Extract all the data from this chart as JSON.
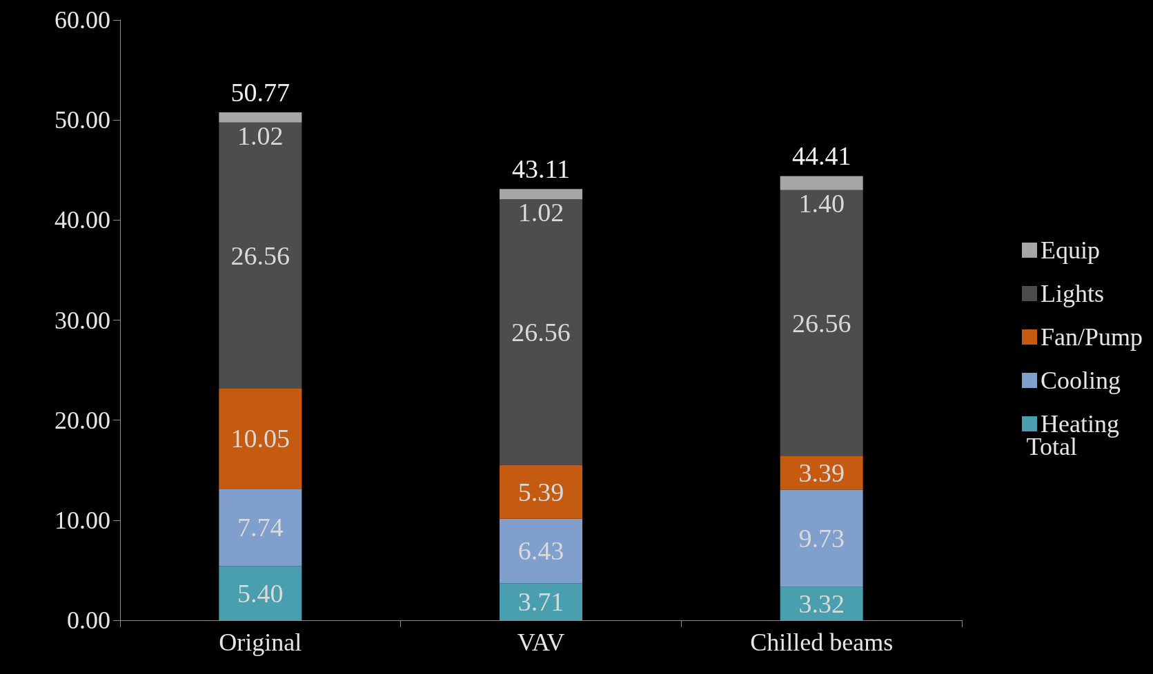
{
  "chart_data": {
    "type": "bar",
    "stacked": true,
    "categories": [
      "Original",
      "VAV",
      "Chilled beams"
    ],
    "series": [
      {
        "name": "Heating",
        "color": "#4a9fae",
        "values": [
          5.4,
          3.71,
          3.32
        ],
        "value_labels": [
          "5.40",
          "3.71",
          "3.32"
        ]
      },
      {
        "name": "Cooling",
        "color": "#809fcc",
        "values": [
          7.74,
          6.43,
          9.73
        ],
        "value_labels": [
          "7.74",
          "6.43",
          "9.73"
        ]
      },
      {
        "name": "Fan/Pump",
        "color": "#c55a11",
        "values": [
          10.05,
          5.39,
          3.39
        ],
        "value_labels": [
          "10.05",
          "5.39",
          "3.39"
        ]
      },
      {
        "name": "Lights",
        "color": "#4d4d4d",
        "values": [
          26.56,
          26.56,
          26.56
        ],
        "value_labels": [
          "26.56",
          "26.56",
          "26.56"
        ]
      },
      {
        "name": "Equip",
        "color": "#a6a6a6",
        "values": [
          1.02,
          1.02,
          1.4
        ],
        "value_labels": [
          "1.02",
          "1.02",
          "1.40"
        ]
      }
    ],
    "totals": [
      "50.77",
      "43.11",
      "44.41"
    ],
    "annotations": [
      "Total"
    ],
    "ylim": [
      0,
      60
    ],
    "yticks": [
      {
        "value": 0,
        "label": "0.00"
      },
      {
        "value": 10,
        "label": "10.00"
      },
      {
        "value": 20,
        "label": "20.00"
      },
      {
        "value": 30,
        "label": "30.00"
      },
      {
        "value": 40,
        "label": "40.00"
      },
      {
        "value": 50,
        "label": "50.00"
      },
      {
        "value": 60,
        "label": "60.00"
      }
    ],
    "grid": false,
    "legend": "right"
  }
}
